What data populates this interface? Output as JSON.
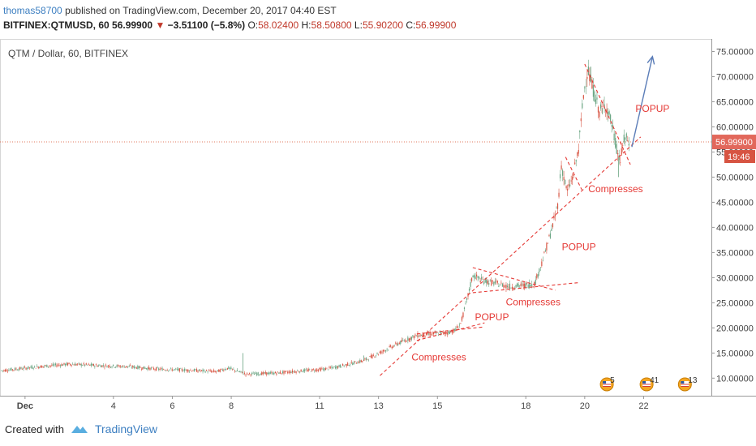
{
  "header": {
    "user": "thomas58700",
    "published_text": "published on TradingView.com, December 20, 2017 04:40 EST",
    "symbol": "BITFINEX:QTMUSD, 60",
    "last": "56.99900",
    "change": "−3.51100 (−5.8%)",
    "open_label": "O:",
    "open": "58.02400",
    "high_label": "H:",
    "high": "58.50800",
    "low_label": "L:",
    "low": "55.90200",
    "close_label": "C:",
    "close": "56.99900"
  },
  "chart_data": {
    "type": "candlestick",
    "title": "QTM / Dollar, 60, BITFINEX",
    "y_ticks": [
      "75.00000",
      "70.00000",
      "65.00000",
      "60.00000",
      "55.00000",
      "50.00000",
      "45.00000",
      "40.00000",
      "35.00000",
      "30.00000",
      "25.00000",
      "20.00000",
      "15.00000",
      "10.00000"
    ],
    "y_tick_values": [
      75,
      70,
      65,
      60,
      55,
      50,
      45,
      40,
      35,
      30,
      25,
      20,
      15,
      10
    ],
    "ylim": [
      6.5,
      77.5
    ],
    "x_ticks": [
      {
        "label": "Dec",
        "day": 0
      },
      {
        "label": "4",
        "day": 3
      },
      {
        "label": "6",
        "day": 5
      },
      {
        "label": "8",
        "day": 7
      },
      {
        "label": "11",
        "day": 10
      },
      {
        "label": "13",
        "day": 12
      },
      {
        "label": "15",
        "day": 14
      },
      {
        "label": "18",
        "day": 17
      },
      {
        "label": "20",
        "day": 19
      },
      {
        "label": "22",
        "day": 21
      }
    ],
    "xlim_days": [
      -0.85,
      23.3
    ],
    "last_price": 56.999,
    "last_price_label": "56.99900",
    "countdown_label": "19:46",
    "price_path": [
      [
        -0.8,
        11.5
      ],
      [
        0.5,
        12.3
      ],
      [
        1.5,
        12.8
      ],
      [
        2.5,
        12.5
      ],
      [
        3.5,
        12.3
      ],
      [
        4.5,
        11.8
      ],
      [
        5.5,
        11.6
      ],
      [
        6.5,
        11.3
      ],
      [
        6.9,
        12.0
      ],
      [
        7.5,
        10.8
      ],
      [
        8.5,
        11.0
      ],
      [
        9.5,
        11.5
      ],
      [
        10.2,
        11.8
      ],
      [
        10.8,
        12.5
      ],
      [
        11.5,
        13.5
      ],
      [
        12.2,
        15.5
      ],
      [
        12.7,
        17.0
      ],
      [
        13.3,
        18.5
      ],
      [
        13.8,
        18.8
      ],
      [
        14.3,
        19.0
      ],
      [
        14.6,
        19.5
      ],
      [
        14.8,
        21.0
      ],
      [
        15.0,
        25.5
      ],
      [
        15.2,
        30.5
      ],
      [
        15.5,
        29.5
      ],
      [
        16.0,
        28.8
      ],
      [
        16.5,
        28.2
      ],
      [
        17.0,
        28.5
      ],
      [
        17.3,
        28.8
      ],
      [
        17.6,
        34.0
      ],
      [
        17.9,
        40.0
      ],
      [
        18.1,
        45.0
      ],
      [
        18.2,
        52.5
      ],
      [
        18.4,
        47.0
      ],
      [
        18.6,
        50.0
      ],
      [
        18.8,
        56.0
      ],
      [
        18.95,
        66.0
      ],
      [
        19.1,
        71.5
      ],
      [
        19.3,
        67.0
      ],
      [
        19.5,
        63.0
      ],
      [
        19.7,
        64.5
      ],
      [
        19.9,
        61.0
      ],
      [
        20.05,
        56.5
      ],
      [
        20.2,
        53.0
      ],
      [
        20.35,
        58.0
      ],
      [
        20.5,
        57.0
      ]
    ],
    "spikes": [
      [
        7.4,
        15.0
      ],
      [
        11.5,
        14.5
      ],
      [
        19.2,
        72.0
      ],
      [
        19.6,
        62.5
      ],
      [
        20.15,
        50.0
      ]
    ],
    "annotations": [
      {
        "text": "POPUP",
        "day": 21.3,
        "price": 63.0
      },
      {
        "text": "Compresses",
        "day": 20.05,
        "price": 47.0
      },
      {
        "text": "POPUP",
        "day": 18.8,
        "price": 35.5
      },
      {
        "text": "Compresses",
        "day": 17.25,
        "price": 24.5
      },
      {
        "text": "POPUP",
        "day": 15.85,
        "price": 21.5
      },
      {
        "text": "Compresses",
        "day": 14.05,
        "price": 13.5
      }
    ],
    "trendlines": [
      {
        "from": [
          12.05,
          10.5
        ],
        "to": [
          20.9,
          58.0
        ]
      },
      {
        "from": [
          13.3,
          18.8
        ],
        "to": [
          15.6,
          20.2
        ]
      },
      {
        "from": [
          13.3,
          17.5
        ],
        "to": [
          15.6,
          21.0
        ]
      },
      {
        "from": [
          15.2,
          32.0
        ],
        "to": [
          18.0,
          27.5
        ]
      },
      {
        "from": [
          15.2,
          27.0
        ],
        "to": [
          18.8,
          29.0
        ]
      },
      {
        "from": [
          18.35,
          54.0
        ],
        "to": [
          18.9,
          47.5
        ]
      },
      {
        "from": [
          19.0,
          72.5
        ],
        "to": [
          20.55,
          52.5
        ]
      }
    ],
    "arrow": {
      "from": [
        20.6,
        56.0
      ],
      "to": [
        21.3,
        74.0
      ]
    },
    "event_badges": [
      {
        "label": "5",
        "day": 19.75
      },
      {
        "label": "41",
        "day": 21.1
      },
      {
        "label": "13",
        "day": 22.4
      }
    ]
  },
  "footer": {
    "created_with": "Created with",
    "brand": "TradingView"
  }
}
